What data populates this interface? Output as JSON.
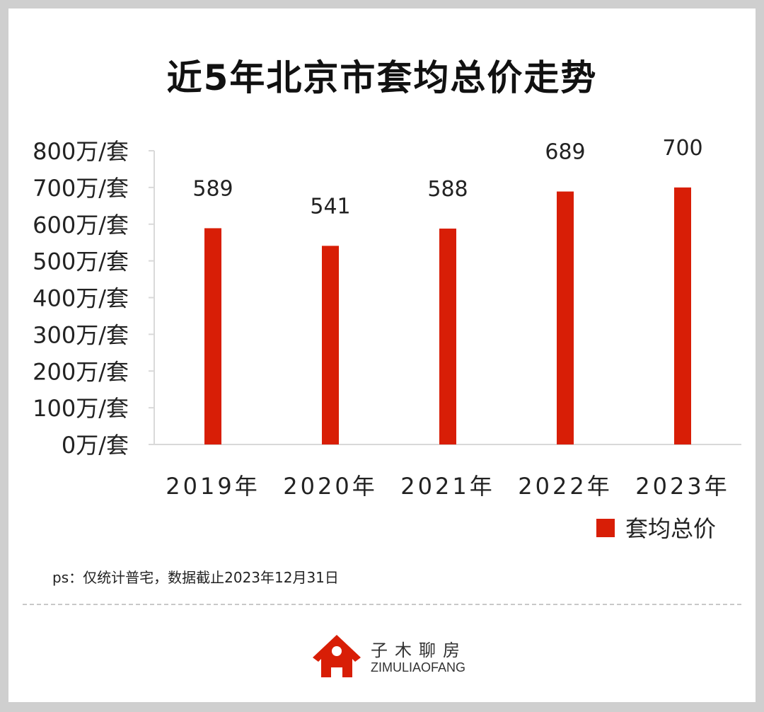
{
  "chart_data": {
    "type": "bar",
    "title": "近5年北京市套均总价走势",
    "categories": [
      "2019年",
      "2020年",
      "2021年",
      "2022年",
      "2023年"
    ],
    "series": [
      {
        "name": "套均总价",
        "values": [
          589,
          541,
          588,
          689,
          700
        ],
        "color": "#d81e06"
      }
    ],
    "data_labels": [
      "589",
      "541",
      "588",
      "689",
      "700"
    ],
    "ylim": [
      0,
      800
    ],
    "yticks": [
      0,
      100,
      200,
      300,
      400,
      500,
      600,
      700,
      800
    ],
    "ytick_labels": [
      "0万/套",
      "100万/套",
      "200万/套",
      "300万/套",
      "400万/套",
      "500万/套",
      "600万/套",
      "700万/套",
      "800万/套"
    ],
    "xlabel": "",
    "ylabel": "",
    "grid": false,
    "legend": "bottom-right"
  },
  "note": "ps：仅统计普宅，数据截止2023年12月31日",
  "brand": {
    "name_cn": "子木聊房",
    "name_en": "ZIMULIAOFANG",
    "color": "#d81e06"
  }
}
